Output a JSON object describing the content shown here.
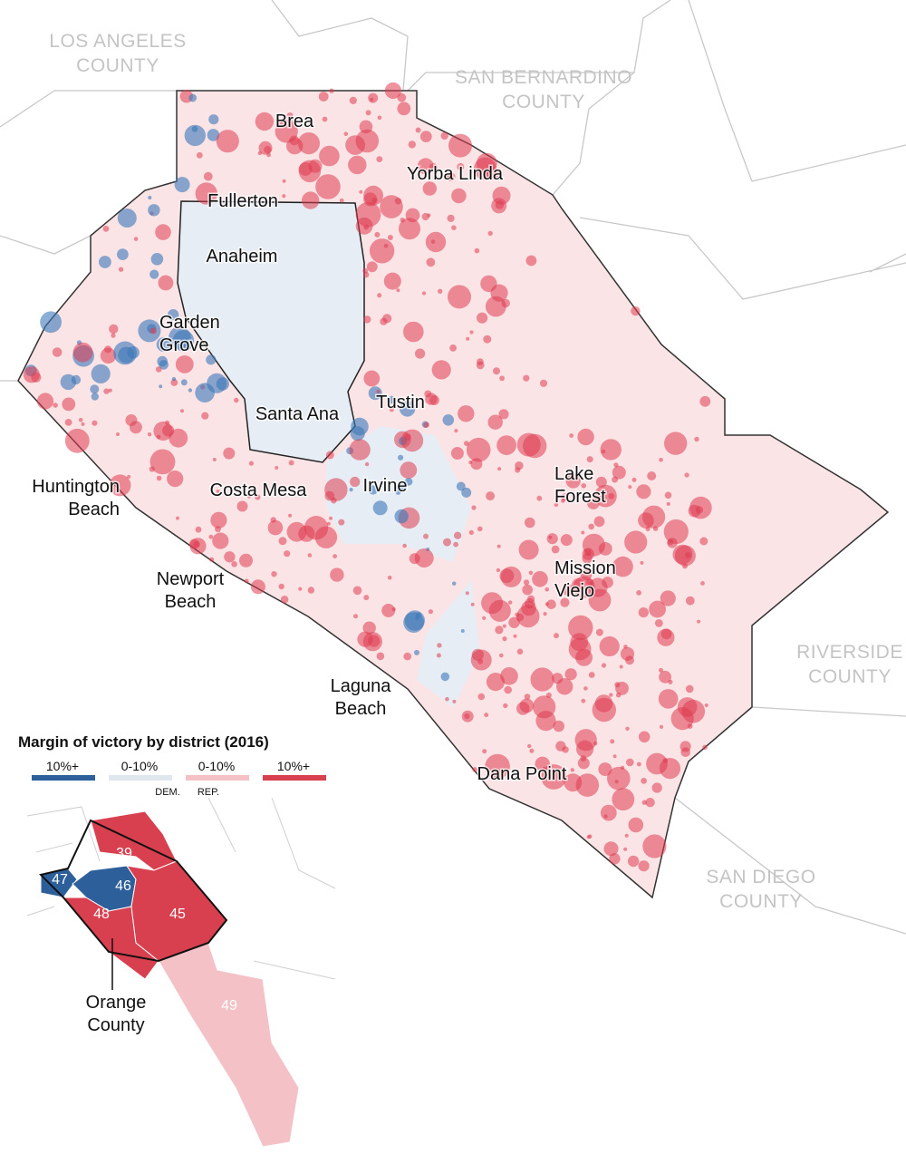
{
  "counties": [
    [
      "LOS ANGELES",
      "COUNTY"
    ],
    [
      "SAN BERNARDINO",
      "COUNTY"
    ],
    [
      "RIVERSIDE",
      "COUNTY"
    ],
    [
      "SAN DIEGO",
      "COUNTY"
    ]
  ],
  "cities": [
    [
      "Brea"
    ],
    [
      "Yorba Linda"
    ],
    [
      "Fullerton"
    ],
    [
      "Anaheim"
    ],
    [
      "Garden",
      "Grove"
    ],
    [
      "Santa Ana"
    ],
    [
      "Tustin"
    ],
    [
      "Huntington",
      "Beach"
    ],
    [
      "Costa Mesa"
    ],
    [
      "Irvine"
    ],
    [
      "Lake",
      "Forest"
    ],
    [
      "Newport",
      "Beach"
    ],
    [
      "Mission",
      "Viejo"
    ],
    [
      "Laguna",
      "Beach"
    ],
    [
      "Dana Point"
    ]
  ],
  "legend": {
    "title": "Margin of victory by district (2016)",
    "items": [
      {
        "label": "10%+",
        "color": "#2d5f9a"
      },
      {
        "label": "0-10%",
        "color": "#dfe6ee"
      },
      {
        "label": "0-10%",
        "color": "#f3c1c6"
      },
      {
        "label": "10%+",
        "color": "#d9404f"
      }
    ],
    "dem": "DEM.",
    "rep": "REP."
  },
  "inset": {
    "districts": [
      {
        "label": "39",
        "color": "#d9404f"
      },
      {
        "label": "47",
        "color": "#2d5f9a"
      },
      {
        "label": "46",
        "color": "#2d5f9a"
      },
      {
        "label": "48",
        "color": "#d9404f"
      },
      {
        "label": "45",
        "color": "#d9404f"
      },
      {
        "label": "49",
        "color": "#f3c1c6"
      }
    ],
    "callout": [
      "Orange",
      "County"
    ]
  }
}
